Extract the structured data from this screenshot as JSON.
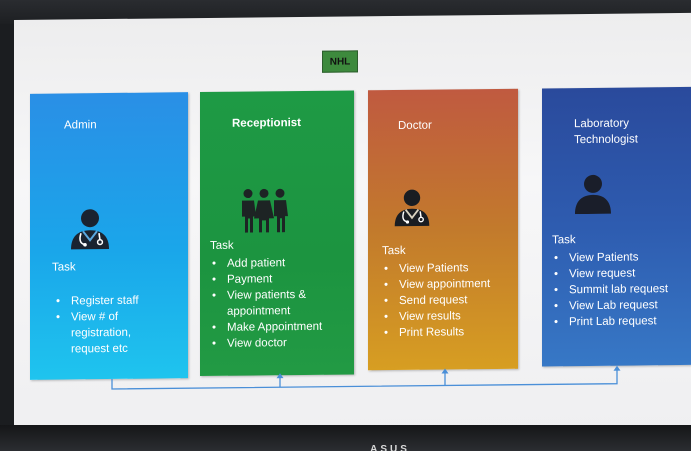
{
  "slide": {
    "title": "NHL",
    "colors": {
      "admin": "#1aa6ea",
      "receptionist": "#1e9a45",
      "doctor": "#c27a2c",
      "laboratory_technologist": "#2e5cb0",
      "title_box": "#3d8a3d",
      "connector": "#4a8fd8"
    },
    "cards": {
      "admin": {
        "role": "Admin",
        "icon": "doctor-person-icon",
        "task_heading": "Task",
        "tasks": [
          "Register staff",
          "View # of registration, request etc"
        ]
      },
      "receptionist": {
        "role": "Receptionist",
        "icon": "group-of-people-icon",
        "task_heading": "Task",
        "tasks": [
          "Add patient",
          "Payment",
          "View patients & appointment",
          "Make Appointment",
          "View doctor"
        ]
      },
      "doctor": {
        "role": "Doctor",
        "icon": "doctor-person-icon",
        "task_heading": "Task",
        "tasks": [
          "View Patients",
          "View appointment",
          "Send request",
          "View results",
          "Print Results"
        ]
      },
      "laboratory_technologist": {
        "role": "Laboratory Technologist",
        "icon": "person-icon",
        "task_heading": "Task",
        "tasks": [
          "View Patients",
          "View request",
          "Summit lab request",
          "View Lab request",
          "Print Lab request"
        ]
      }
    }
  },
  "monitor": {
    "brand": "ASUS"
  }
}
